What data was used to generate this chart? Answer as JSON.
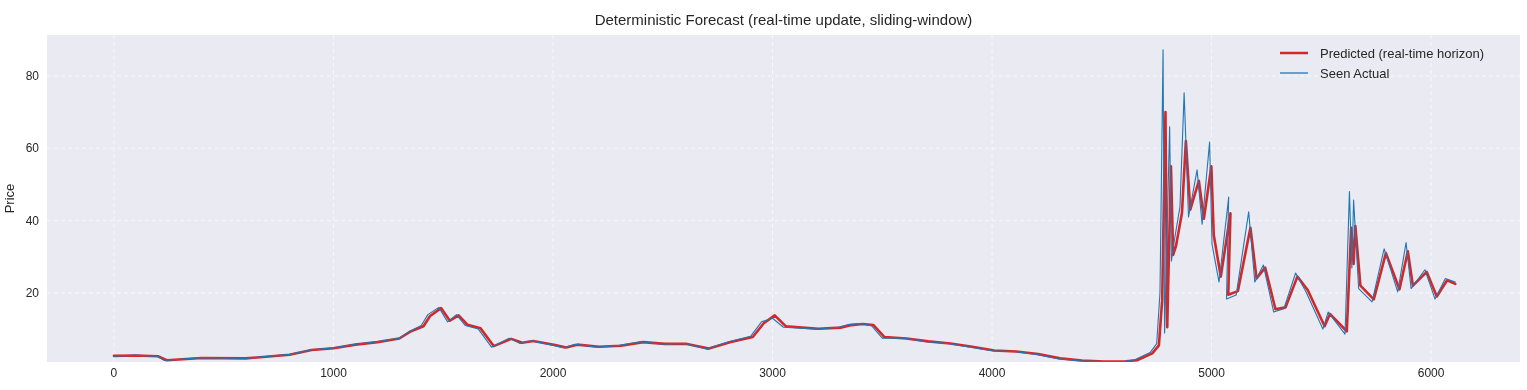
{
  "chart_data": {
    "type": "line",
    "title": "Deterministic Forecast (real‑time update, sliding‑window)",
    "ylabel": "Price",
    "xlim": [
      -305,
      6405
    ],
    "ylim": [
      0.9,
      91.3
    ],
    "xticks": [
      0,
      1000,
      2000,
      3000,
      4000,
      5000,
      6000
    ],
    "yticks": [
      20,
      40,
      60,
      80
    ],
    "grid": true,
    "legend": "top right",
    "line_style": "solid",
    "marker": "none",
    "series": [
      {
        "name": "Predicted (real‑time horizon)",
        "color": "#d62728",
        "x": [
          0,
          100,
          200,
          240,
          400,
          600,
          800,
          900,
          1000,
          1100,
          1200,
          1300,
          1350,
          1410,
          1440,
          1490,
          1530,
          1570,
          1610,
          1670,
          1730,
          1810,
          1860,
          1910,
          2010,
          2060,
          2110,
          2210,
          2310,
          2410,
          2510,
          2610,
          2710,
          2810,
          2910,
          2960,
          3010,
          3060,
          3210,
          3310,
          3360,
          3410,
          3460,
          3510,
          3610,
          3710,
          3810,
          3910,
          4010,
          4110,
          4210,
          4310,
          4410,
          4510,
          4610,
          4660,
          4730,
          4760,
          4775,
          4790,
          4798,
          4815,
          4825,
          4838,
          4865,
          4883,
          4903,
          4942,
          4965,
          4999,
          5010,
          5042,
          5086,
          5076,
          5120,
          5177,
          5205,
          5244,
          5291,
          5337,
          5391,
          5438,
          5515,
          5539,
          5616,
          5636,
          5647,
          5655,
          5678,
          5739,
          5794,
          5856,
          5894,
          5917,
          5980,
          6026,
          6073,
          6110
        ],
        "values": [
          2.6,
          2.7,
          2.5,
          1.4,
          2.0,
          1.9,
          2.9,
          4.2,
          4.7,
          5.7,
          6.4,
          7.4,
          9.3,
          10.8,
          13.6,
          15.8,
          12.3,
          13.8,
          11.2,
          10.2,
          5.3,
          7.3,
          6.2,
          6.7,
          5.6,
          4.9,
          5.7,
          5.1,
          5.4,
          6.4,
          5.9,
          5.9,
          4.6,
          6.4,
          7.8,
          11.6,
          13.8,
          10.8,
          10.1,
          10.4,
          11.1,
          11.4,
          11.1,
          7.8,
          7.4,
          6.6,
          6.0,
          5.1,
          4.1,
          3.8,
          3.1,
          1.9,
          1.3,
          1.0,
          1.1,
          1.4,
          3.3,
          5.5,
          18.0,
          70.0,
          10.5,
          55.0,
          30.5,
          33.0,
          42.0,
          62.0,
          43.0,
          51.0,
          40.5,
          55.0,
          36.0,
          24.5,
          42.0,
          19.5,
          20.5,
          38.0,
          24.0,
          27.0,
          15.5,
          16.0,
          24.5,
          20.8,
          10.8,
          14.2,
          9.4,
          38.0,
          28.0,
          38.5,
          22.0,
          18.2,
          31.0,
          21.0,
          31.5,
          22.0,
          25.8,
          19.0,
          23.5,
          22.5
        ]
      },
      {
        "name": "Seen Actual",
        "color": "#1f77b4",
        "x": [
          0,
          100,
          200,
          230,
          400,
          600,
          800,
          900,
          1000,
          1100,
          1200,
          1300,
          1350,
          1400,
          1430,
          1480,
          1520,
          1560,
          1600,
          1660,
          1720,
          1800,
          1850,
          1900,
          2000,
          2050,
          2100,
          2200,
          2300,
          2400,
          2500,
          2600,
          2700,
          2800,
          2900,
          2950,
          3000,
          3050,
          3200,
          3300,
          3350,
          3400,
          3450,
          3500,
          3600,
          3700,
          3800,
          3900,
          4000,
          4100,
          4200,
          4300,
          4400,
          4500,
          4600,
          4650,
          4720,
          4750,
          4765,
          4779,
          4786,
          4809,
          4817,
          4829,
          4856,
          4875,
          4895,
          4934,
          4957,
          4991,
          5002,
          5034,
          5078,
          5068,
          5112,
          5169,
          5197,
          5236,
          5283,
          5329,
          5383,
          5430,
          5507,
          5531,
          5608,
          5628,
          5639,
          5647,
          5670,
          5731,
          5786,
          5848,
          5886,
          5909,
          5972,
          6018,
          6065,
          6110
        ],
        "values": [
          2.5,
          2.8,
          2.4,
          1.3,
          2.1,
          1.9,
          3.0,
          4.3,
          4.8,
          5.8,
          6.5,
          7.5,
          9.5,
          11.0,
          14.0,
          16.0,
          12.0,
          14.0,
          11.0,
          10.0,
          5.0,
          7.5,
          6.0,
          6.8,
          5.5,
          4.8,
          5.8,
          5.0,
          5.5,
          6.5,
          5.8,
          6.0,
          4.5,
          6.5,
          8.0,
          12.0,
          13.0,
          10.5,
          10.0,
          10.5,
          11.3,
          11.5,
          11.0,
          7.5,
          7.5,
          6.5,
          6.0,
          5.0,
          4.0,
          3.8,
          3.0,
          1.8,
          1.2,
          1.0,
          1.0,
          1.5,
          3.5,
          6.0,
          20.0,
          87.2,
          8.9,
          65.9,
          28.8,
          34.0,
          43.8,
          75.3,
          41.0,
          54.0,
          39.0,
          61.7,
          33.5,
          23.0,
          46.5,
          18.3,
          19.4,
          42.4,
          23.0,
          27.7,
          14.7,
          15.6,
          25.5,
          20.3,
          10.0,
          14.7,
          8.6,
          48.0,
          26.9,
          45.7,
          21.2,
          17.5,
          32.2,
          20.3,
          33.9,
          21.2,
          26.4,
          18.3,
          24.0,
          23.0
        ]
      }
    ]
  }
}
